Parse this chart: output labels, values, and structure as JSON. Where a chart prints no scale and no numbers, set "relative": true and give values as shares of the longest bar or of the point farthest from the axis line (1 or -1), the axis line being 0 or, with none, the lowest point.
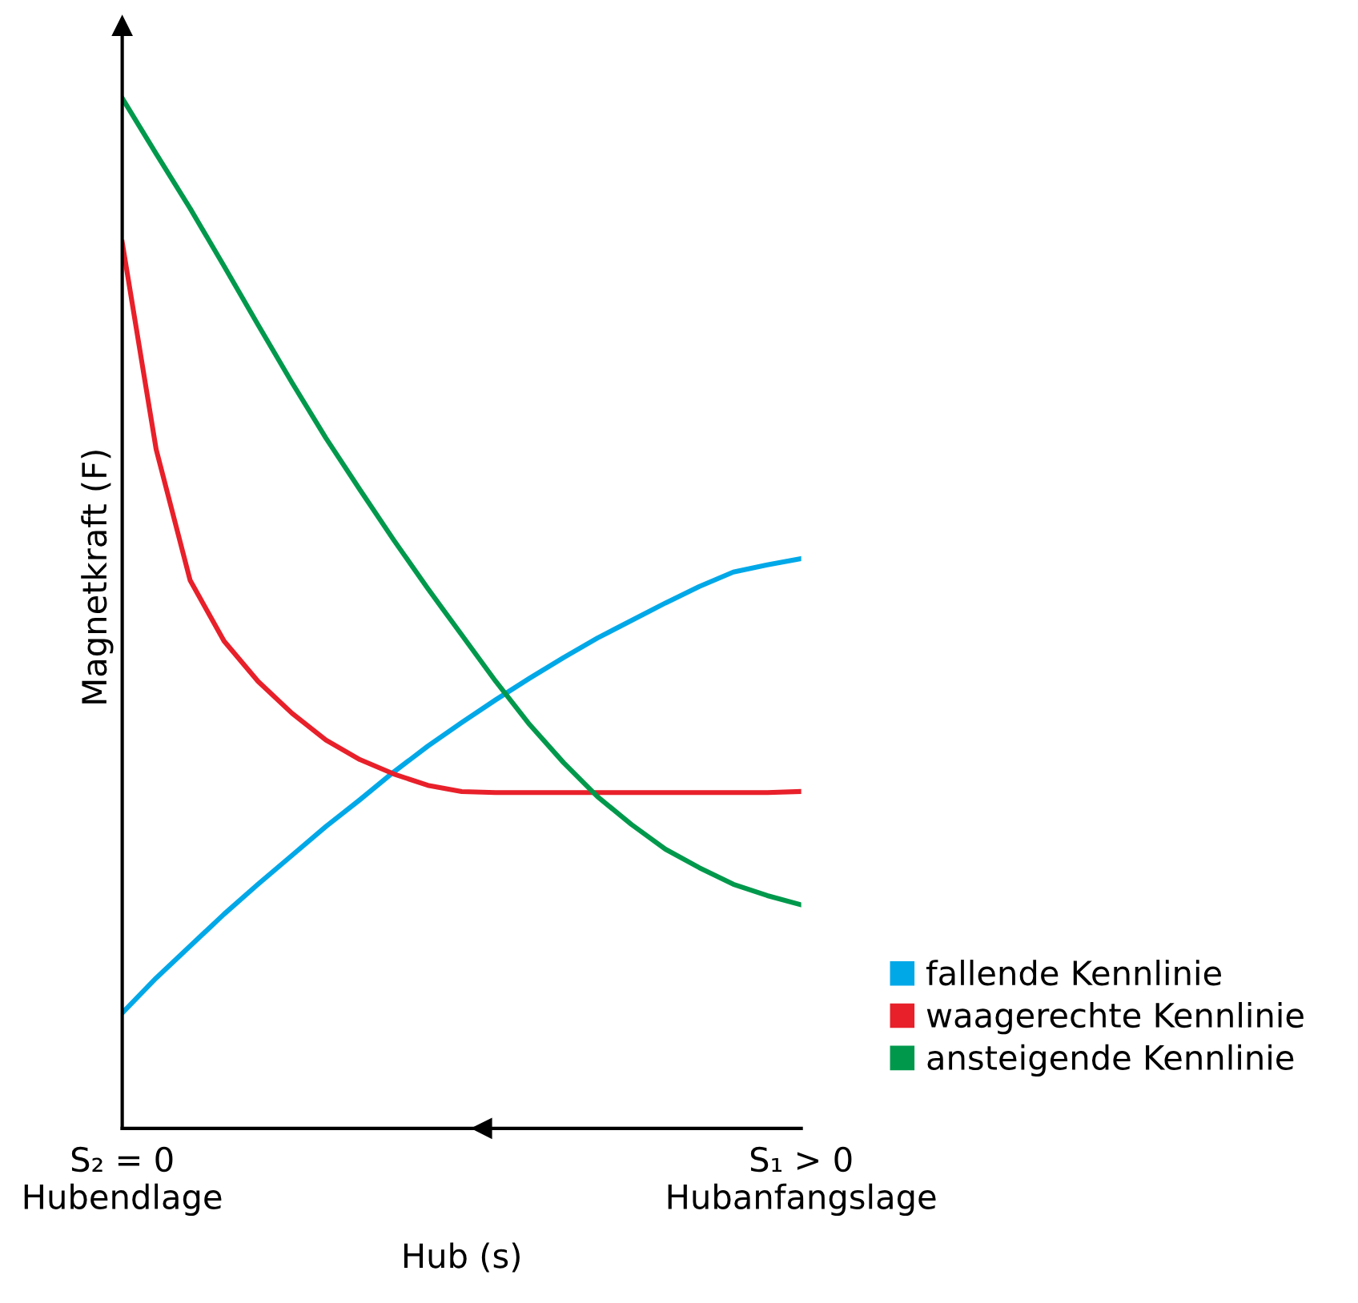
{
  "chart_data": {
    "type": "line",
    "relative": true,
    "xlabel": "Hub (s)",
    "ylabel": "Magnetkraft (F)",
    "categories": [
      "S₂ = 0\nHubendlage",
      null,
      null,
      null,
      null,
      null,
      null,
      null,
      null,
      null,
      null,
      null,
      null,
      null,
      null,
      null,
      null,
      null,
      null,
      null,
      "S₁ > 0\nHubanfangslage"
    ],
    "legend": "right",
    "line_style": "solid",
    "series": [
      {
        "name": "fallende Kennlinie",
        "color": "#00a8e8",
        "values": [
          0.112,
          0.146,
          0.177,
          0.208,
          0.237,
          0.265,
          0.293,
          0.319,
          0.346,
          0.371,
          0.394,
          0.416,
          0.437,
          0.457,
          0.476,
          0.493,
          0.51,
          0.526,
          0.54,
          0.547,
          0.553
        ]
      },
      {
        "name": "waagerechte Kennlinie",
        "color": "#e8202a",
        "values": [
          0.86,
          0.659,
          0.532,
          0.473,
          0.434,
          0.403,
          0.377,
          0.358,
          0.344,
          0.333,
          0.327,
          0.326,
          0.326,
          0.326,
          0.326,
          0.326,
          0.326,
          0.326,
          0.326,
          0.326,
          0.327
        ]
      },
      {
        "name": "ansteigende Kennlinie",
        "color": "#00994c",
        "values": [
          1,
          0.946,
          0.893,
          0.837,
          0.78,
          0.724,
          0.67,
          0.62,
          0.571,
          0.524,
          0.479,
          0.434,
          0.392,
          0.355,
          0.322,
          0.295,
          0.271,
          0.253,
          0.237,
          0.226,
          0.217
        ]
      }
    ]
  }
}
